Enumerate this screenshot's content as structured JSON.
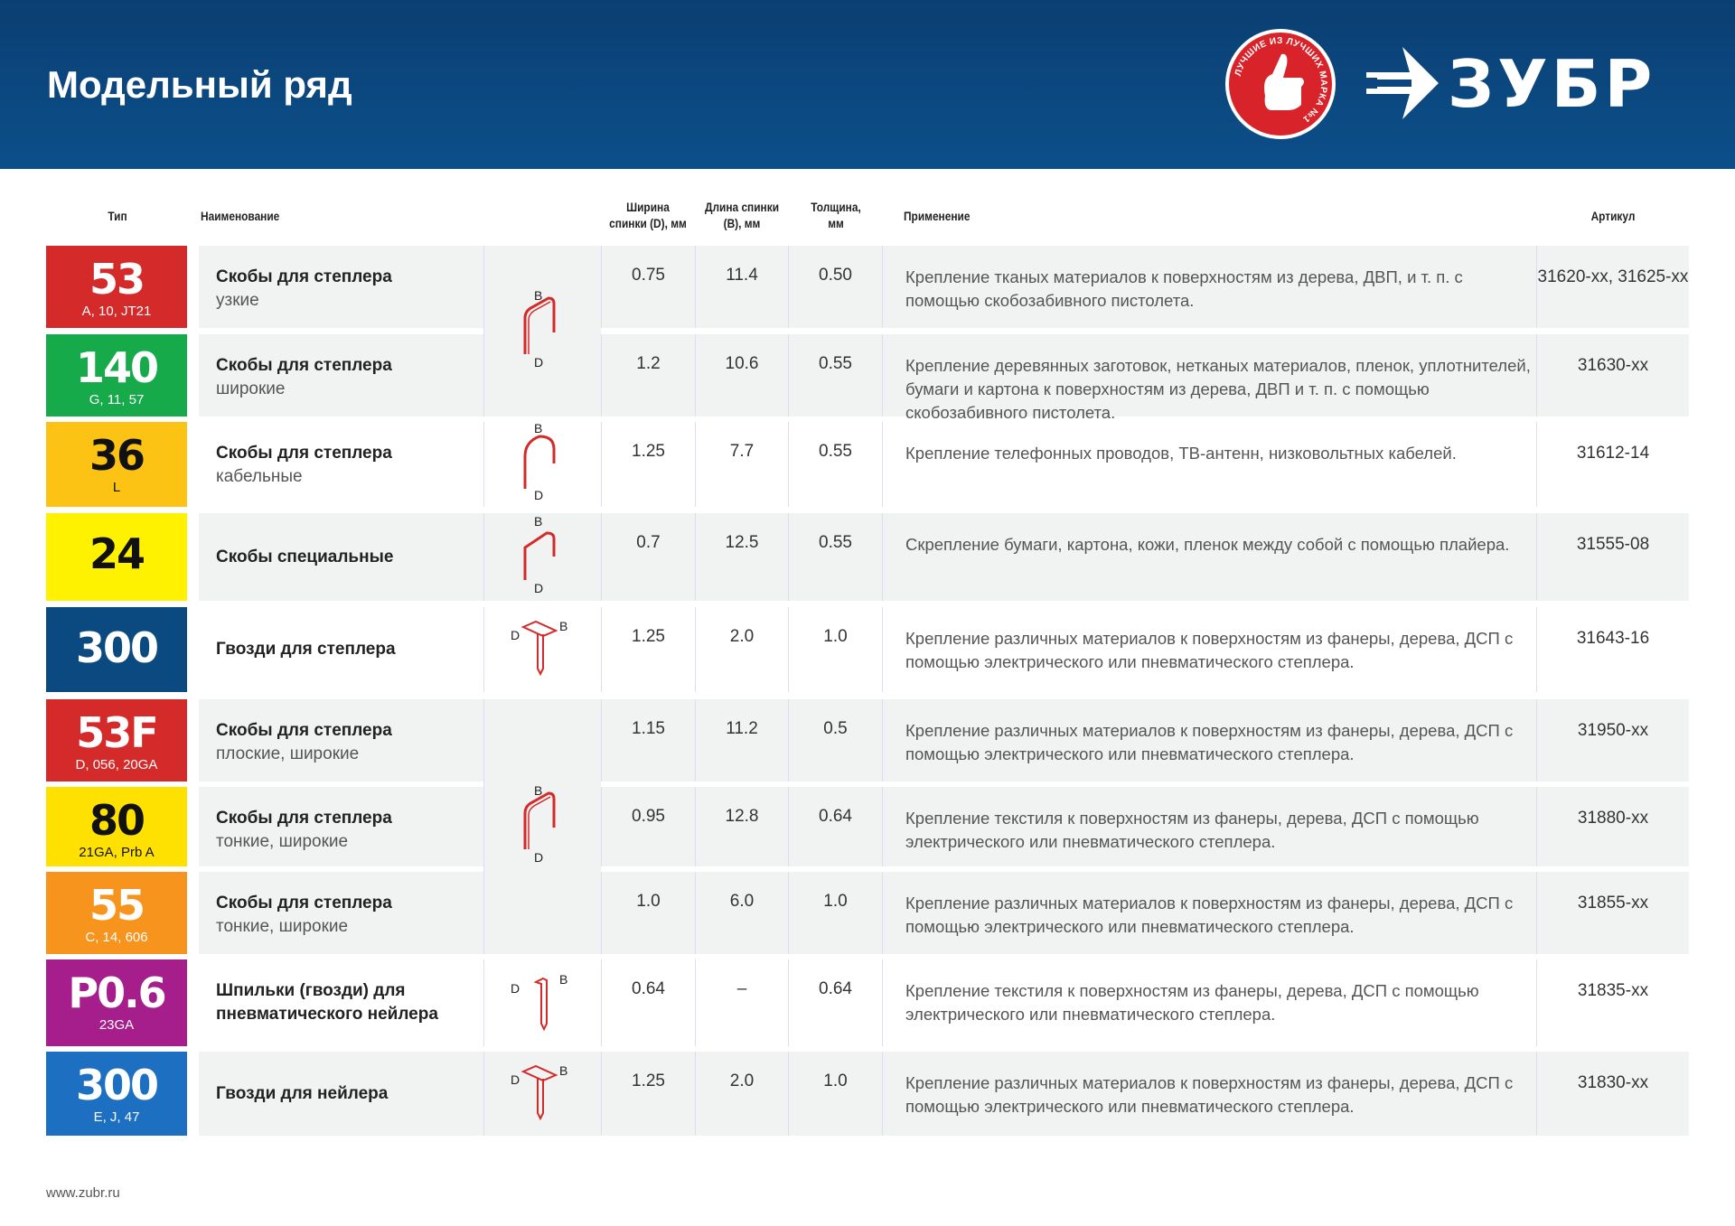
{
  "header": {
    "title": "Модельный ряд",
    "badge_text": "ЛУЧШИЕ ИЗ ЛУЧШИХ МАРКА №1",
    "brand": "ЗУБР"
  },
  "columns": {
    "type": "Тип",
    "name": "Наименование",
    "width": "Ширина спинки (D), мм",
    "length": "Длина спинки (B), мм",
    "thickness": "Толщина, мм",
    "application": "Применение",
    "article": "Артикул"
  },
  "rows": [
    {
      "type": "53",
      "sub": "A, 10, JT21",
      "color": "#d42a2a",
      "text": "#ffffff",
      "name": "Скобы для степлера",
      "desc": "узкие",
      "d": "0.75",
      "b": "11.4",
      "t": "0.50",
      "app": "Крепление тканых материалов к поверхностям из дерева, ДВП, и т. п. с помощью скобозабивного пистолета.",
      "art": "31620-xx, 31625-xx"
    },
    {
      "type": "140",
      "sub": "G, 11, 57",
      "color": "#17aa4a",
      "text": "#ffffff",
      "name": "Скобы для степлера",
      "desc": "широкие",
      "d": "1.2",
      "b": "10.6",
      "t": "0.55",
      "app": "Крепление деревянных заготовок, нетканых материалов, пленок, уплотнителей, бумаги и картона к поверхностям из дерева, ДВП и т. п. с помощью скобозабивного пистолета.",
      "art": "31630-xx"
    },
    {
      "type": "36",
      "sub": "L",
      "color": "#fcc314",
      "text": "#111111",
      "name": "Скобы для степлера",
      "desc": "кабельные",
      "d": "1.25",
      "b": "7.7",
      "t": "0.55",
      "app": "Крепление телефонных проводов, ТВ-антенн, низковольтных кабелей.",
      "art": "31612-14"
    },
    {
      "type": "24",
      "sub": "",
      "color": "#fff200",
      "text": "#111111",
      "name": "Скобы специальные",
      "desc": "",
      "d": "0.7",
      "b": "12.5",
      "t": "0.55",
      "app": "Скрепление бумаги, картона, кожи, пленок между собой с помощью плайера.",
      "art": "31555-08"
    },
    {
      "type": "300",
      "sub": "",
      "color": "#0b4a80",
      "text": "#ffffff",
      "name": "Гвозди для степлера",
      "desc": "",
      "d": "1.25",
      "b": "2.0",
      "t": "1.0",
      "app": "Крепление различных материалов к поверхностям из фанеры, дерева, ДСП с помощью электрического или пневматического степлера.",
      "art": "31643-16"
    },
    {
      "type": "53F",
      "sub": "D, 056, 20GA",
      "color": "#d42a2a",
      "text": "#ffffff",
      "name": "Скобы для степлера",
      "desc": "плоские, широкие",
      "d": "1.15",
      "b": "11.2",
      "t": "0.5",
      "app": "Крепление различных материалов к поверхностям из фанеры, дерева, ДСП с помощью электрического или пневматического степлера.",
      "art": "31950-xx"
    },
    {
      "type": "80",
      "sub": "21GA, Prb A",
      "color": "#ffe100",
      "text": "#111111",
      "name": "Скобы для степлера",
      "desc": "тонкие, широкие",
      "d": "0.95",
      "b": "12.8",
      "t": "0.64",
      "app": "Крепление текстиля к поверхностям из фанеры, дерева, ДСП с помощью электрического или пневматического степлера.",
      "art": "31880-xx"
    },
    {
      "type": "55",
      "sub": "C, 14, 606",
      "color": "#f7941d",
      "text": "#ffffff",
      "name": "Скобы для степлера",
      "desc": "тонкие, широкие",
      "d": "1.0",
      "b": "6.0",
      "t": "1.0",
      "app": "Крепление различных материалов к поверхностям из фанеры, дерева, ДСП с помощью электрического или пневматического степлера.",
      "art": "31855-xx"
    },
    {
      "type": "P0.6",
      "sub": "23GA",
      "color": "#a61e8c",
      "text": "#ffffff",
      "name": "Шпильки (гвозди) для пневматического нейлера",
      "desc": "",
      "d": "0.64",
      "b": "–",
      "t": "0.64",
      "app": "Крепление текстиля к поверхностям из фанеры, дерева, ДСП с помощью электрического или пневматического степлера.",
      "art": "31835-xx"
    },
    {
      "type": "300",
      "sub": "E, J, 47",
      "color": "#1d70c1",
      "text": "#ffffff",
      "name": "Гвозди для нейлера",
      "desc": "",
      "d": "1.25",
      "b": "2.0",
      "t": "1.0",
      "app": "Крепление различных материалов к поверхностям из фанеры, дерева, ДСП с помощью электрического или пневматического степлера.",
      "art": "31830-xx"
    }
  ],
  "diagrams": [
    {
      "icon": "staple-icon",
      "label_b": "B",
      "label_d": "D"
    },
    {
      "icon": "cable-staple-icon",
      "label_b": "B",
      "label_d": "D"
    },
    {
      "icon": "special-staple-icon",
      "label_b": "B",
      "label_d": "D"
    },
    {
      "icon": "nail-icon",
      "label_b": "B",
      "label_d": "D"
    },
    {
      "icon": "staple-icon",
      "label_b": "B",
      "label_d": "D"
    },
    {
      "icon": "pin-icon",
      "label_b": "B",
      "label_d": "D"
    },
    {
      "icon": "nail-icon",
      "label_b": "B",
      "label_d": "D"
    }
  ],
  "footer": {
    "url": "www.zubr.ru"
  }
}
